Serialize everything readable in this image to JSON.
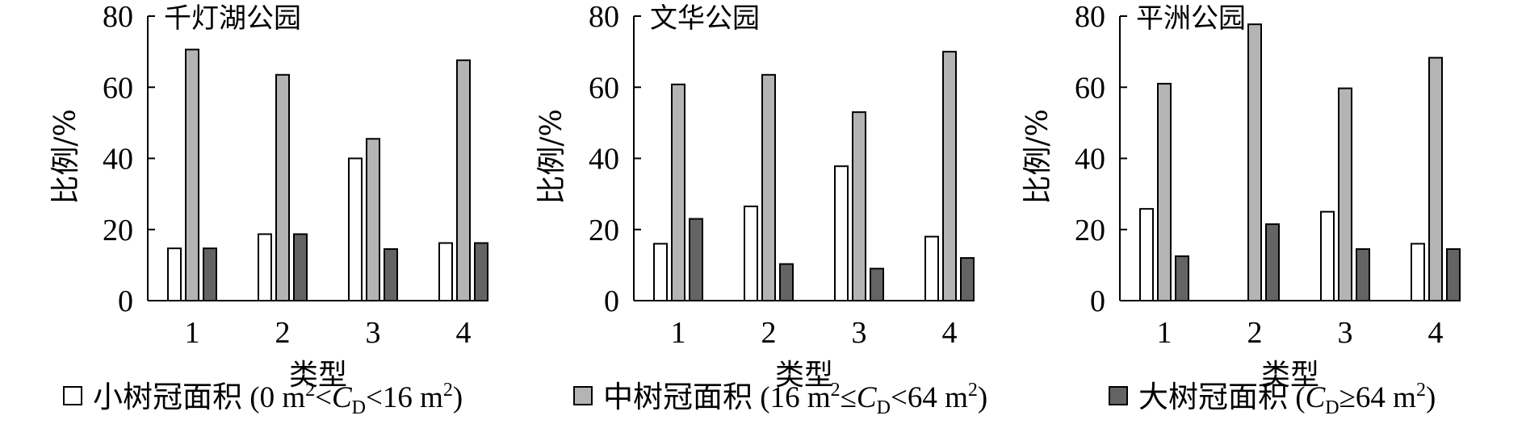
{
  "colors": {
    "small": "#ffffff",
    "medium": "#b4b4b4",
    "large": "#646464",
    "stroke": "#000000"
  },
  "chart_data": [
    {
      "type": "bar",
      "title": "千灯湖公园",
      "xlabel": "类型",
      "ylabel": "比例/%",
      "ylim": [
        0,
        80
      ],
      "yticks": [
        "0",
        "20",
        "40",
        "60",
        "80"
      ],
      "categories": [
        "1",
        "2",
        "3",
        "4"
      ],
      "series": [
        {
          "name": "小树冠面积",
          "values": [
            14.7,
            18.7,
            40.0,
            16.2
          ]
        },
        {
          "name": "中树冠面积",
          "values": [
            70.6,
            63.5,
            45.5,
            67.6
          ]
        },
        {
          "name": "大树冠面积",
          "values": [
            14.7,
            18.7,
            14.5,
            16.2
          ]
        }
      ],
      "grid": false
    },
    {
      "type": "bar",
      "title": "文华公园",
      "xlabel": "类型",
      "ylabel": "比例/%",
      "ylim": [
        0,
        80
      ],
      "yticks": [
        "0",
        "20",
        "40",
        "60",
        "80"
      ],
      "categories": [
        "1",
        "2",
        "3",
        "4"
      ],
      "series": [
        {
          "name": "小树冠面积",
          "values": [
            16.0,
            26.5,
            37.8,
            18.0
          ]
        },
        {
          "name": "中树冠面积",
          "values": [
            60.8,
            63.5,
            53.0,
            70.0
          ]
        },
        {
          "name": "大树冠面积",
          "values": [
            23.0,
            10.3,
            9.0,
            12.0
          ]
        }
      ],
      "grid": false
    },
    {
      "type": "bar",
      "title": "平洲公园",
      "xlabel": "类型",
      "ylabel": "比例/%",
      "ylim": [
        0,
        80
      ],
      "yticks": [
        "0",
        "20",
        "40",
        "60",
        "80"
      ],
      "categories": [
        "1",
        "2",
        "3",
        "4"
      ],
      "series": [
        {
          "name": "小树冠面积",
          "values": [
            25.8,
            0,
            25.0,
            16.0
          ]
        },
        {
          "name": "中树冠面积",
          "values": [
            61.0,
            77.7,
            59.7,
            68.3
          ]
        },
        {
          "name": "大树冠面积",
          "values": [
            12.5,
            21.5,
            14.5,
            14.5
          ]
        }
      ],
      "grid": false
    }
  ],
  "legend": {
    "placement": "bottom",
    "items": [
      {
        "name": "小树冠面积",
        "range_text": "(0 m²<CD<16 m²)",
        "range_pre": " (0 m",
        "sup1": "2",
        "mid1": "<",
        "italic": "C",
        "sub": "D",
        "mid2": "<16 m",
        "sup2": "2",
        "close": ")"
      },
      {
        "name": "中树冠面积",
        "range_text": "(16 m²≤CD<64 m²)",
        "range_pre": " (16 m",
        "sup1": "2",
        "mid1": "≤",
        "italic": "C",
        "sub": "D",
        "mid2": "<64 m",
        "sup2": "2",
        "close": ")"
      },
      {
        "name": "大树冠面积",
        "range_text": "(CD≥64 m²)",
        "range_pre": " (",
        "sup1": "",
        "mid1": "",
        "italic": "C",
        "sub": "D",
        "mid2": "≥64 m",
        "sup2": "2",
        "close": ")"
      }
    ]
  }
}
